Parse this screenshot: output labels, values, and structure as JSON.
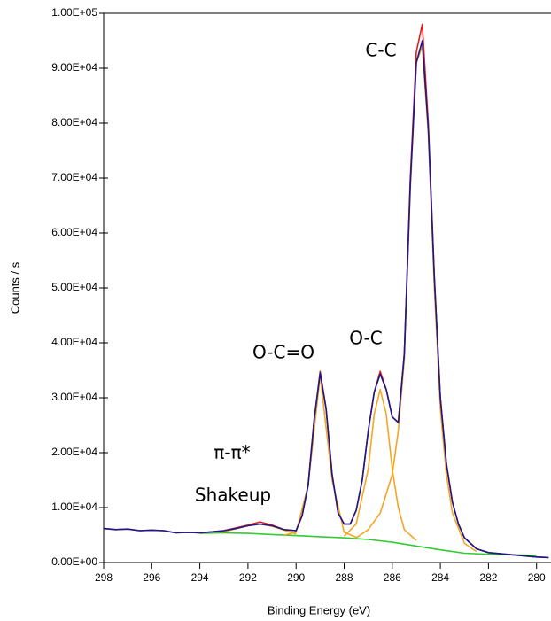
{
  "chart_data": {
    "type": "line",
    "x_label": "Binding Energy (eV)",
    "y_label": "Counts / s",
    "annotations": [
      "C-C",
      "O-C",
      "O-C=O",
      "π-π*",
      "Shakeup"
    ],
    "xlim": [
      298,
      279.4
    ],
    "ylim": [
      0,
      100000
    ],
    "xticks": [
      298,
      296,
      294,
      292,
      290,
      288,
      286,
      284,
      282,
      280
    ],
    "yticks": [
      {
        "value": 0,
        "label": "0.00E+00"
      },
      {
        "value": 10000,
        "label": "1.00E+04"
      },
      {
        "value": 20000,
        "label": "2.00E+04"
      },
      {
        "value": 30000,
        "label": "3.00E+04"
      },
      {
        "value": 40000,
        "label": "4.00E+04"
      },
      {
        "value": 50000,
        "label": "5.00E+04"
      },
      {
        "value": 60000,
        "label": "6.00E+04"
      },
      {
        "value": 70000,
        "label": "7.00E+04"
      },
      {
        "value": 80000,
        "label": "8.00E+04"
      },
      {
        "value": 90000,
        "label": "9.00E+04"
      },
      {
        "value": 100000,
        "label": "1.00E+05"
      }
    ],
    "series": [
      {
        "color": "#33cc33",
        "x": [
          294,
          293,
          292,
          291,
          290,
          289,
          288,
          287,
          286,
          285,
          284,
          283,
          282,
          281,
          280
        ],
        "values": [
          5300,
          5400,
          5300,
          5100,
          4900,
          4700,
          4500,
          4200,
          3700,
          3000,
          2300,
          1700,
          1500,
          1400,
          1300
        ]
      },
      {
        "color": "#f5a623",
        "x": [
          293,
          292,
          291.5,
          291,
          290
        ],
        "values": [
          5600,
          6700,
          7000,
          6600,
          5200
        ]
      },
      {
        "color": "#f5a623",
        "x": [
          290.5,
          290,
          289.5,
          289,
          288.5,
          288,
          287.5
        ],
        "values": [
          5000,
          5500,
          14000,
          34000,
          15000,
          5500,
          4600
        ]
      },
      {
        "color": "#f5a623",
        "x": [
          288,
          287.5,
          287,
          286.75,
          286.5,
          286.25,
          286,
          285.75,
          285.5,
          285
        ],
        "values": [
          4800,
          7000,
          17000,
          27000,
          31500,
          27000,
          17000,
          10000,
          6000,
          4000
        ]
      },
      {
        "color": "#f5a623",
        "x": [
          287.5,
          287,
          286.5,
          286,
          285.75,
          285.5,
          285.25,
          285,
          284.75,
          284.5,
          284.25,
          284,
          283.75,
          283.5,
          283,
          282.5
        ],
        "values": [
          4500,
          6000,
          9000,
          16000,
          24000,
          37000,
          68000,
          91000,
          94000,
          78000,
          50000,
          28000,
          16000,
          9000,
          3500,
          2000
        ]
      },
      {
        "color": "#e02020",
        "x": [
          298,
          297.5,
          297,
          296.5,
          296,
          295.5,
          295,
          294.5,
          294,
          293.5,
          293,
          292.5,
          292,
          291.5,
          291,
          290.5,
          290,
          289.75,
          289.5,
          289.25,
          289,
          288.75,
          288.5,
          288.25,
          288,
          287.75,
          287.5,
          287.25,
          287,
          286.75,
          286.5,
          286.25,
          286,
          285.75,
          285.5,
          285.25,
          285,
          284.75,
          284.5,
          284.25,
          284,
          283.75,
          283.5,
          283.25,
          283,
          282.5,
          282,
          281.5,
          281,
          280.5,
          280,
          279.5
        ],
        "values": [
          6200,
          6000,
          6100,
          5800,
          5900,
          5800,
          5400,
          5500,
          5400,
          5600,
          5800,
          6300,
          6800,
          7400,
          6800,
          6000,
          5800,
          8500,
          14000,
          26000,
          34800,
          28000,
          16000,
          9000,
          7000,
          7000,
          9500,
          15000,
          24000,
          31000,
          34800,
          31500,
          26500,
          25500,
          38000,
          70000,
          93000,
          98000,
          80000,
          52000,
          30000,
          18000,
          11000,
          7000,
          4500,
          2500,
          1800,
          1600,
          1400,
          1200,
          1000,
          900
        ]
      },
      {
        "color": "#1a1a8c",
        "x": [
          298,
          297.5,
          297,
          296.5,
          296,
          295.5,
          295,
          294.5,
          294,
          293.5,
          293,
          292.5,
          292,
          291.5,
          291,
          290.5,
          290,
          289.75,
          289.5,
          289.25,
          289,
          288.75,
          288.5,
          288.25,
          288,
          287.75,
          287.5,
          287.25,
          287,
          286.75,
          286.5,
          286.25,
          286,
          285.75,
          285.5,
          285.25,
          285,
          284.75,
          284.5,
          284.25,
          284,
          283.75,
          283.5,
          283.25,
          283,
          282.5,
          282,
          281.5,
          281,
          280.5,
          280,
          279.5
        ],
        "values": [
          6200,
          6000,
          6100,
          5800,
          5900,
          5800,
          5400,
          5500,
          5400,
          5600,
          5800,
          6200,
          6700,
          7000,
          6700,
          6000,
          5800,
          8500,
          14000,
          26000,
          34500,
          28000,
          16000,
          9000,
          7000,
          7000,
          9500,
          15000,
          24000,
          31000,
          34300,
          31500,
          26500,
          25500,
          38000,
          69000,
          91000,
          95000,
          79000,
          52000,
          30000,
          18000,
          11000,
          7000,
          4500,
          2500,
          1800,
          1600,
          1400,
          1200,
          1000,
          900
        ]
      }
    ]
  }
}
